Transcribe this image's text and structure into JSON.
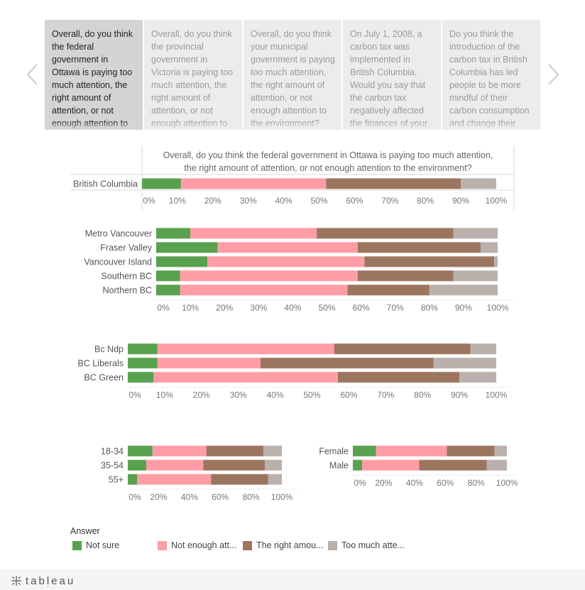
{
  "nav": {
    "tabs": [
      {
        "text": "Overall, do you think the federal government in Ottawa is paying too much attention, the right amount of attention, or not enough attention to the environment?",
        "active": true
      },
      {
        "text": "Overall, do you think the provincial government in Victoria is paying too much attention, the right amount of attention, or not enough attention to the environment?",
        "active": false
      },
      {
        "text": "Overall, do you think your municipal government is paying too much attention, the right amount of attention, or not enough attention to the environment?",
        "active": false
      },
      {
        "text": "On July 1, 2008, a carbon tax was implemented in British Columbia. Would you say that the carbon tax negatively affected the finances of your household?",
        "active": false
      },
      {
        "text": "Do you think the introduction of the carbon tax in British Columbia has led people to be more mindful of their carbon consumption and change their behaviour?",
        "active": false
      }
    ]
  },
  "colors": {
    "not_sure": "#59a14f",
    "not_enough": "#ff9da7",
    "right_amount": "#9c755f",
    "too_much": "#bab0ac",
    "grid": "#d9d9d9"
  },
  "legend": {
    "title": "Answer",
    "items": [
      {
        "label": "Not sure",
        "color_key": "not_sure"
      },
      {
        "label": "Not enough att...",
        "color_key": "not_enough"
      },
      {
        "label": "The right amou...",
        "color_key": "right_amount"
      },
      {
        "label": "Too much atte...",
        "color_key": "too_much"
      }
    ]
  },
  "footer": {
    "brand": "tableau"
  },
  "chart_data": [
    {
      "type": "bar",
      "stacked": "percent",
      "orientation": "horizontal",
      "title": "Overall, do you think the federal government in Ottawa is paying too much attention, the right amount of attention, or not enough attention to the environment?",
      "categories": [
        "British Columbia"
      ],
      "series": [
        {
          "name": "Not sure",
          "values": [
            11
          ]
        },
        {
          "name": "Not enough attention",
          "values": [
            41
          ]
        },
        {
          "name": "The right amount",
          "values": [
            38
          ]
        },
        {
          "name": "Too much attention",
          "values": [
            10
          ]
        }
      ],
      "xlim": [
        0,
        100
      ],
      "tick_labels": [
        "0%",
        "10%",
        "20%",
        "30%",
        "40%",
        "50%",
        "60%",
        "70%",
        "80%",
        "90%",
        "100%"
      ]
    },
    {
      "type": "bar",
      "stacked": "percent",
      "orientation": "horizontal",
      "categories": [
        "Metro Vancouver",
        "Fraser Valley",
        "Vancouver Island",
        "Southern BC",
        "Northern BC"
      ],
      "series": [
        {
          "name": "Not sure",
          "values": [
            10,
            18,
            15,
            7,
            7
          ]
        },
        {
          "name": "Not enough attention",
          "values": [
            37,
            41,
            46,
            52,
            49
          ]
        },
        {
          "name": "The right amount",
          "values": [
            40,
            36,
            38,
            28,
            24
          ]
        },
        {
          "name": "Too much attention",
          "values": [
            13,
            5,
            1,
            13,
            20
          ]
        }
      ],
      "xlim": [
        0,
        100
      ],
      "tick_labels": [
        "0%",
        "10%",
        "20%",
        "30%",
        "40%",
        "50%",
        "60%",
        "70%",
        "80%",
        "90%",
        "100%"
      ]
    },
    {
      "type": "bar",
      "stacked": "percent",
      "orientation": "horizontal",
      "categories": [
        "Bc Ndp",
        "BC Liberals",
        "BC Green"
      ],
      "series": [
        {
          "name": "Not sure",
          "values": [
            8,
            8,
            7
          ]
        },
        {
          "name": "Not enough attention",
          "values": [
            48,
            28,
            50
          ]
        },
        {
          "name": "The right amount",
          "values": [
            37,
            47,
            33
          ]
        },
        {
          "name": "Too much attention",
          "values": [
            7,
            17,
            10
          ]
        }
      ],
      "xlim": [
        0,
        100
      ],
      "tick_labels": [
        "0%",
        "10%",
        "20%",
        "30%",
        "40%",
        "50%",
        "60%",
        "70%",
        "80%",
        "90%",
        "100%"
      ]
    },
    {
      "type": "bar",
      "stacked": "percent",
      "orientation": "horizontal",
      "categories": [
        "18-34",
        "35-54",
        "55+"
      ],
      "series": [
        {
          "name": "Not sure",
          "values": [
            16,
            12,
            6
          ]
        },
        {
          "name": "Not enough attention",
          "values": [
            35,
            37,
            48
          ]
        },
        {
          "name": "The right amount",
          "values": [
            37,
            40,
            37
          ]
        },
        {
          "name": "Too much attention",
          "values": [
            12,
            11,
            9
          ]
        }
      ],
      "xlim": [
        0,
        100
      ],
      "tick_labels": [
        "0%",
        "20%",
        "40%",
        "60%",
        "80%",
        "100%"
      ]
    },
    {
      "type": "bar",
      "stacked": "percent",
      "orientation": "horizontal",
      "categories": [
        "Female",
        "Male"
      ],
      "series": [
        {
          "name": "Not sure",
          "values": [
            15,
            6
          ]
        },
        {
          "name": "Not enough attention",
          "values": [
            46,
            37
          ]
        },
        {
          "name": "The right amount",
          "values": [
            31,
            44
          ]
        },
        {
          "name": "Too much attention",
          "values": [
            8,
            13
          ]
        }
      ],
      "xlim": [
        0,
        100
      ],
      "tick_labels": [
        "0%",
        "20%",
        "40%",
        "60%",
        "80%",
        "100%"
      ]
    }
  ]
}
